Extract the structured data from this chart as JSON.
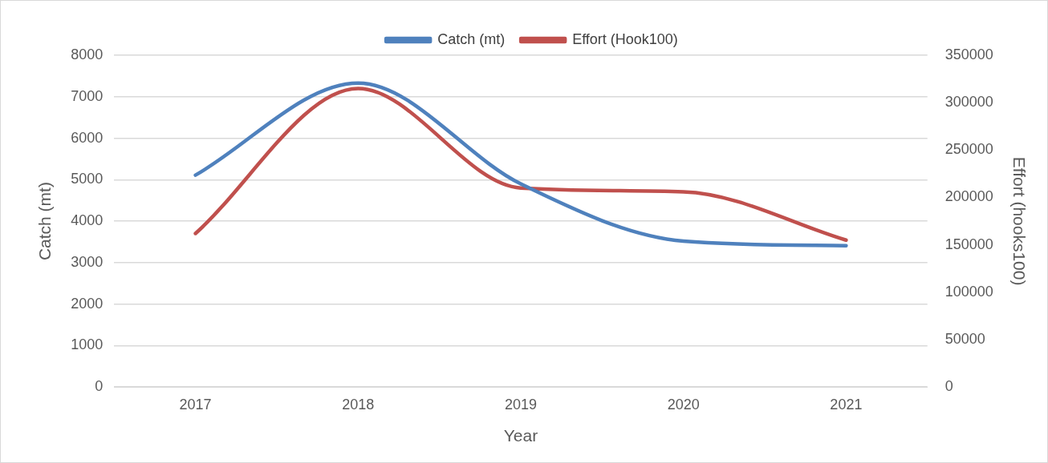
{
  "chart_data": {
    "type": "line",
    "xlabel": "Year",
    "ylabel": "Catch (mt)",
    "y2label": "Effort (hooks100)",
    "categories": [
      "2017",
      "2018",
      "2019",
      "2020",
      "2021"
    ],
    "series": [
      {
        "name": "Catch (mt)",
        "color": "#4f81bd",
        "values": [
          5110,
          7330,
          4900,
          3520,
          3410
        ]
      },
      {
        "name": "Effort (Hook100)",
        "color": "#c0504d",
        "axis": "y2",
        "values": [
          162000,
          315000,
          210000,
          206000,
          155000
        ]
      }
    ],
    "ylim": [
      0,
      8000
    ],
    "yticks": [
      0,
      1000,
      2000,
      3000,
      4000,
      5000,
      6000,
      7000,
      8000
    ],
    "y2lim": [
      0,
      350000
    ],
    "y2ticks": [
      0,
      50000,
      100000,
      150000,
      200000,
      250000,
      300000,
      350000
    ],
    "grid": "y",
    "legend": "top",
    "marker": "none",
    "line_style": "solid"
  }
}
